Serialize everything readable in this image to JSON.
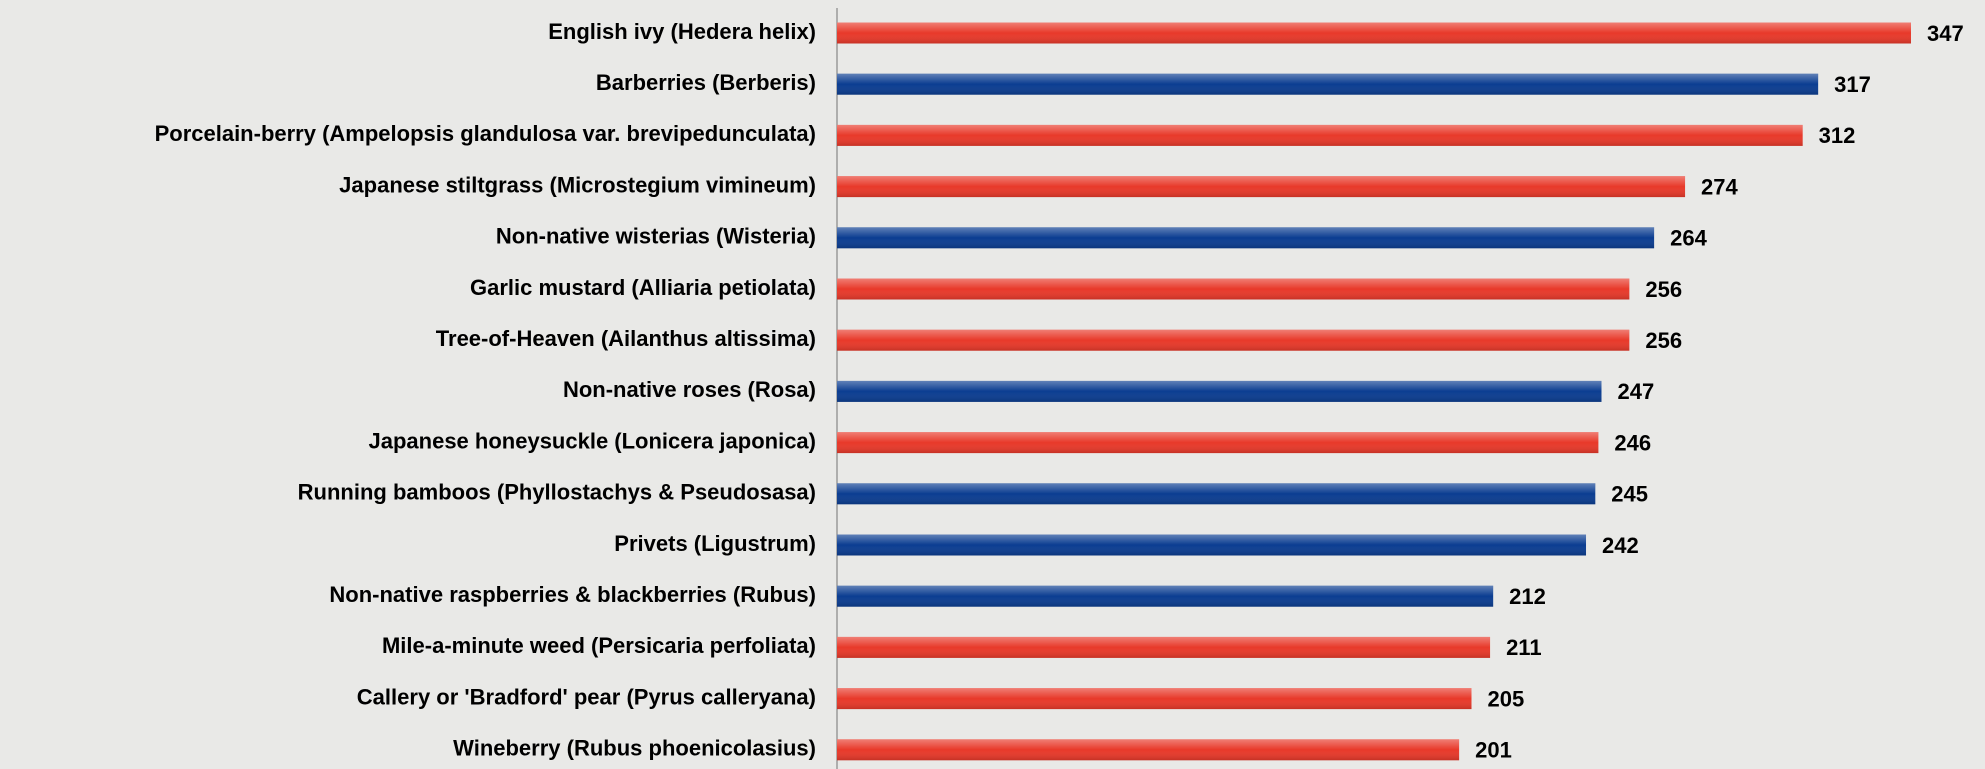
{
  "chart_data": {
    "type": "bar",
    "orientation": "horizontal",
    "categories": [
      "English ivy (Hedera helix)",
      "Barberries (Berberis)",
      "Porcelain-berry (Ampelopsis glandulosa var. brevipedunculata)",
      "Japanese stiltgrass (Microstegium vimineum)",
      "Non-native wisterias (Wisteria)",
      "Garlic mustard (Alliaria petiolata)",
      "Tree-of-Heaven (Ailanthus altissima)",
      "Non-native roses (Rosa)",
      "Japanese honeysuckle (Lonicera japonica)",
      "Running bamboos (Phyllostachys & Pseudosasa)",
      "Privets (Ligustrum)",
      "Non-native raspberries & blackberries (Rubus)",
      "Mile-a-minute weed (Persicaria perfoliata)",
      "Callery or 'Bradford' pear (Pyrus calleryana)",
      "Wineberry (Rubus phoenicolasius)"
    ],
    "values": [
      347,
      317,
      312,
      274,
      264,
      256,
      256,
      247,
      246,
      245,
      242,
      212,
      211,
      205,
      201
    ],
    "colors": [
      "#e8392a",
      "#0b3d91",
      "#e8392a",
      "#e8392a",
      "#0b3d91",
      "#e8392a",
      "#e8392a",
      "#0b3d91",
      "#e8392a",
      "#0b3d91",
      "#0b3d91",
      "#0b3d91",
      "#e8392a",
      "#e8392a",
      "#e8392a"
    ]
  }
}
